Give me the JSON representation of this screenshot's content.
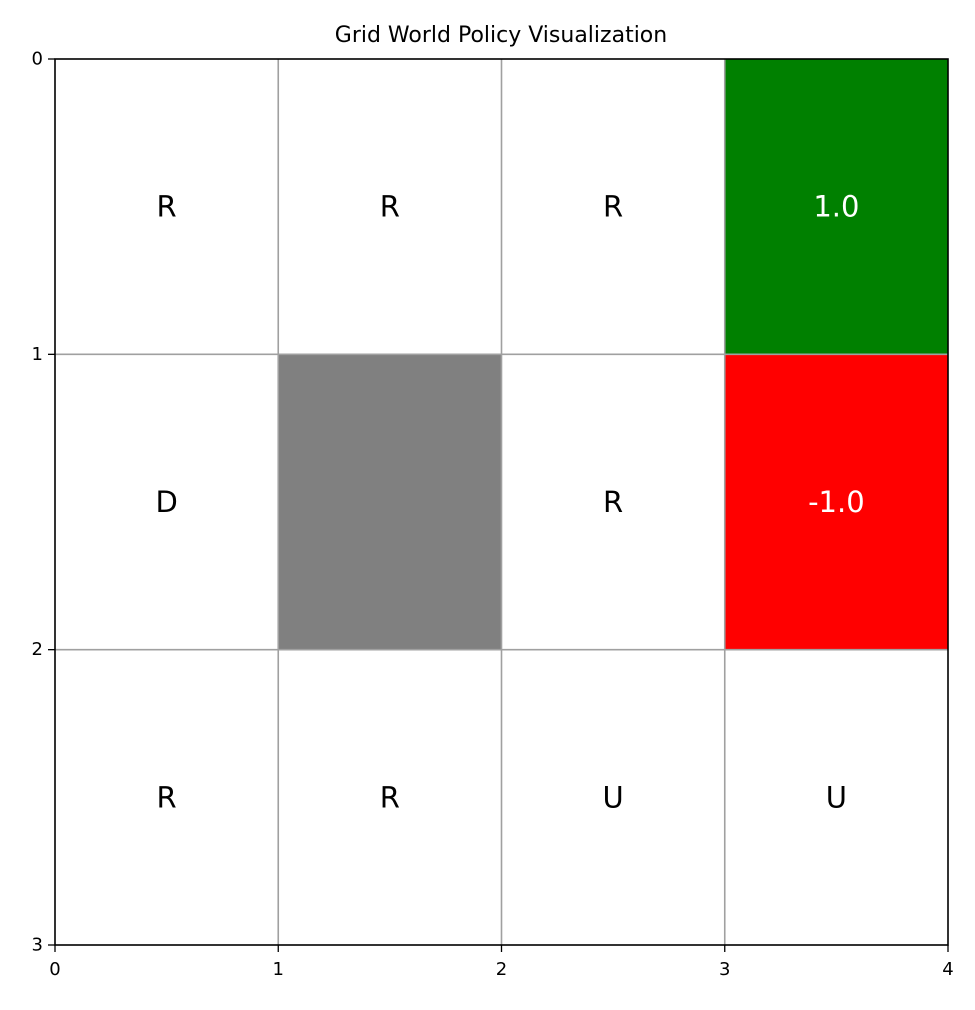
{
  "chart_data": {
    "type": "heatmap",
    "title": "Grid World Policy Visualization",
    "rows": 3,
    "cols": 4,
    "xlim": [
      0,
      4
    ],
    "ylim": [
      3,
      0
    ],
    "x_ticks": [
      "0",
      "1",
      "2",
      "3",
      "4"
    ],
    "y_ticks": [
      "0",
      "1",
      "2",
      "3"
    ],
    "grid": true,
    "colors": {
      "empty": "#ffffff",
      "goal": "#008000",
      "pit": "#ff0000",
      "wall": "#808080",
      "grid_line": "#a0a0a0",
      "axis": "#000000",
      "policy_text": "#000000",
      "terminal_text": "#ffffff"
    },
    "cells": [
      {
        "row": 0,
        "col": 0,
        "kind": "empty",
        "label": "R"
      },
      {
        "row": 0,
        "col": 1,
        "kind": "empty",
        "label": "R"
      },
      {
        "row": 0,
        "col": 2,
        "kind": "empty",
        "label": "R"
      },
      {
        "row": 0,
        "col": 3,
        "kind": "goal",
        "label": "1.0"
      },
      {
        "row": 1,
        "col": 0,
        "kind": "empty",
        "label": "D"
      },
      {
        "row": 1,
        "col": 1,
        "kind": "wall",
        "label": ""
      },
      {
        "row": 1,
        "col": 2,
        "kind": "empty",
        "label": "R"
      },
      {
        "row": 1,
        "col": 3,
        "kind": "pit",
        "label": "-1.0"
      },
      {
        "row": 2,
        "col": 0,
        "kind": "empty",
        "label": "R"
      },
      {
        "row": 2,
        "col": 1,
        "kind": "empty",
        "label": "R"
      },
      {
        "row": 2,
        "col": 2,
        "kind": "empty",
        "label": "U"
      },
      {
        "row": 2,
        "col": 3,
        "kind": "empty",
        "label": "U"
      }
    ]
  }
}
